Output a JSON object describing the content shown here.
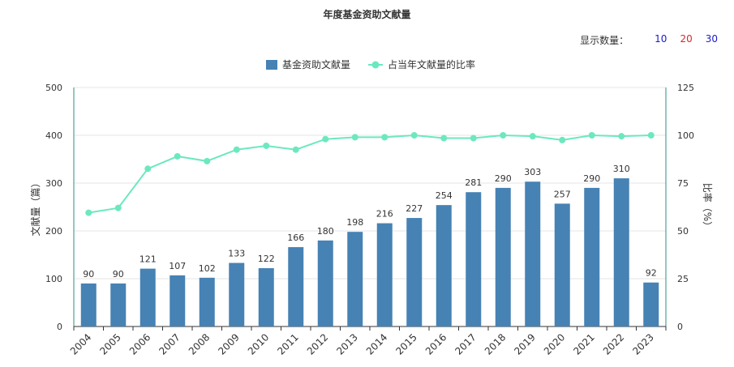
{
  "page": {
    "title": "年度基金资助文献量",
    "count_selector": {
      "label": "显示数量：",
      "options": [
        {
          "label": "10",
          "color": "#1a1acc"
        },
        {
          "label": "20",
          "color": "#d9262b"
        },
        {
          "label": "30",
          "color": "#1a1acc"
        }
      ]
    }
  },
  "colors": {
    "bar": "#4682b4",
    "line": "#6ce8c0",
    "axis": "#2a8f7f",
    "grid": "#e6e6e6"
  },
  "chart_data": {
    "type": "bar",
    "title": "年度基金资助文献量",
    "categories": [
      "2004",
      "2005",
      "2006",
      "2007",
      "2008",
      "2009",
      "2010",
      "2011",
      "2012",
      "2013",
      "2014",
      "2015",
      "2016",
      "2017",
      "2018",
      "2019",
      "2020",
      "2021",
      "2022",
      "2023"
    ],
    "series": [
      {
        "name": "基金资助文献量",
        "type": "bar",
        "axis": "left",
        "values": [
          90,
          90,
          121,
          107,
          102,
          133,
          122,
          166,
          180,
          198,
          216,
          227,
          254,
          281,
          290,
          303,
          257,
          290,
          310,
          92
        ]
      },
      {
        "name": "占当年文献量的比率",
        "type": "line",
        "axis": "right",
        "values": [
          59.5,
          62,
          82.5,
          89,
          86.5,
          92.5,
          94.5,
          92.5,
          98,
          99,
          99,
          100,
          98.5,
          98.5,
          100,
          99.5,
          97.5,
          100,
          99.5,
          100
        ]
      }
    ],
    "ylabel": "文献量（篇）",
    "y2label": "比率（%）",
    "ylim": [
      0,
      500
    ],
    "y2lim": [
      0,
      125
    ],
    "yticks": [
      "0",
      "100",
      "200",
      "300",
      "400",
      "500"
    ],
    "y2ticks": [
      "0",
      "25",
      "50",
      "75",
      "100",
      "125"
    ],
    "grid": true,
    "legend": "top-center"
  }
}
